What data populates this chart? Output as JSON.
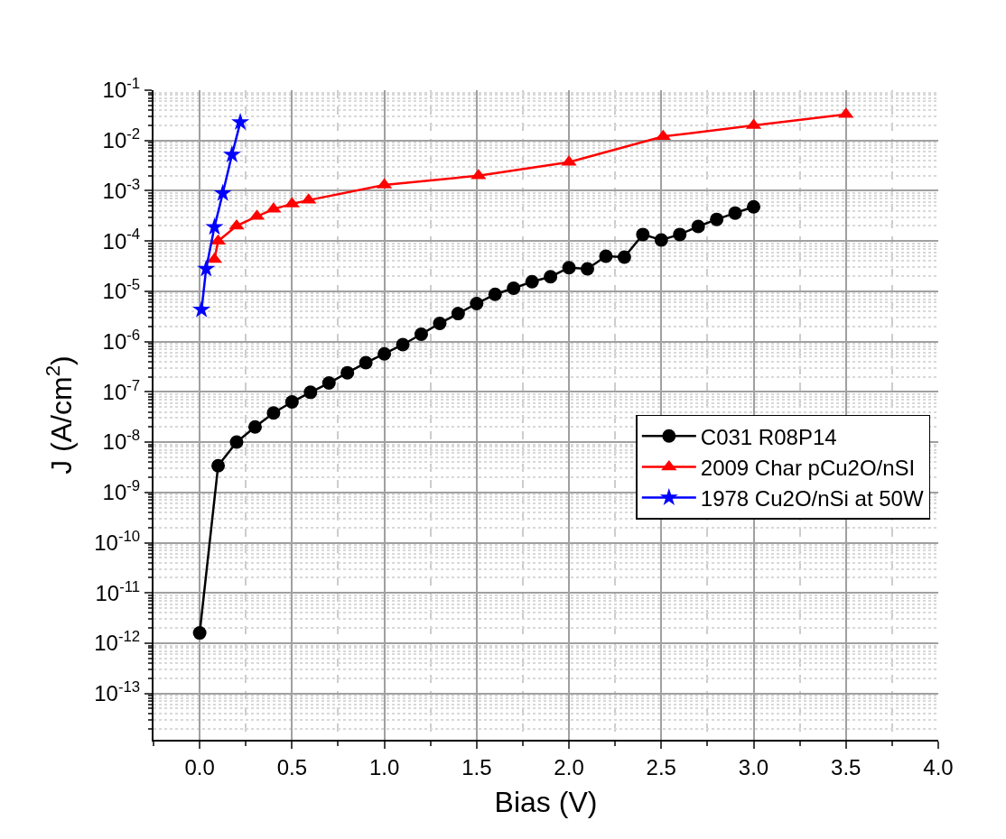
{
  "chart_data": {
    "type": "line",
    "xlabel": "Bias (V)",
    "ylabel": "J (A/cm$^{2}$)",
    "log": "y",
    "xlim": [
      -0.25,
      4.0
    ],
    "ylim": [
      1.2e-14,
      0.1
    ],
    "xticks": [
      {
        "value": 0,
        "label": "0.0"
      },
      {
        "value": 0.5,
        "label": "0.5"
      },
      {
        "value": 1,
        "label": "1.0"
      },
      {
        "value": 1.5,
        "label": "1.5"
      },
      {
        "value": 2,
        "label": "2.0"
      },
      {
        "value": 2.5,
        "label": "2.5"
      },
      {
        "value": 3,
        "label": "3.0"
      },
      {
        "value": 3.5,
        "label": "3.5"
      },
      {
        "value": 4,
        "label": "4.0"
      }
    ],
    "yticks": [
      {
        "value": 1e-13,
        "label": "10$^{-13}$"
      },
      {
        "value": 1e-12,
        "label": "10$^{-12}$"
      },
      {
        "value": 1e-11,
        "label": "10$^{-11}$"
      },
      {
        "value": 1e-10,
        "label": "10$^{-10}$"
      },
      {
        "value": 1e-09,
        "label": "10$^{-9}$"
      },
      {
        "value": 1e-08,
        "label": "10$^{-8}$"
      },
      {
        "value": 1e-07,
        "label": "10$^{-7}$"
      },
      {
        "value": 1e-06,
        "label": "10$^{-6}$"
      },
      {
        "value": 1e-05,
        "label": "10$^{-5}$"
      },
      {
        "value": 0.0001,
        "label": "10$^{-4}$"
      },
      {
        "value": 0.001,
        "label": "10$^{-3}$"
      },
      {
        "value": 0.01,
        "label": "10$^{-2}$"
      },
      {
        "value": 0.1,
        "label": "10$^{-1}$"
      }
    ],
    "grid": true,
    "legend": "right",
    "line_style": "solid",
    "series": [
      {
        "name": "C031 R08P14",
        "color": "#000000",
        "marker": "circle",
        "x": [
          0,
          0.1,
          0.2,
          0.3,
          0.4,
          0.5,
          0.6,
          0.7,
          0.8,
          0.9,
          1.0,
          1.1,
          1.2,
          1.3,
          1.4,
          1.5,
          1.6,
          1.7,
          1.8,
          1.9,
          2.0,
          2.1,
          2.2,
          2.3,
          2.4,
          2.5,
          2.6,
          2.7,
          2.8,
          2.9,
          3.0
        ],
        "values": [
          1.6e-12,
          3.4e-09,
          1e-08,
          2e-08,
          3.8e-08,
          6.3e-08,
          9.8e-08,
          1.5e-07,
          2.4e-07,
          3.8e-07,
          5.7e-07,
          8.7e-07,
          1.4e-06,
          2.3e-06,
          3.6e-06,
          5.7e-06,
          8.7e-06,
          1.15e-05,
          1.55e-05,
          1.95e-05,
          2.95e-05,
          2.8e-05,
          5e-05,
          4.8e-05,
          0.000135,
          0.000105,
          0.000135,
          0.000195,
          0.00027,
          0.00036,
          0.00048
        ]
      },
      {
        "name": "2009 Char pCu2O/nSI",
        "color": "#ff0000",
        "marker": "triangle",
        "x": [
          0.08,
          0.1,
          0.2,
          0.31,
          0.4,
          0.5,
          0.59,
          1.0,
          1.51,
          2.0,
          2.51,
          3.0,
          3.5
        ],
        "values": [
          4.3e-05,
          0.0001,
          0.0002,
          0.00031,
          0.00043,
          0.00055,
          0.00065,
          0.0013,
          0.002,
          0.0037,
          0.012,
          0.02,
          0.033
        ]
      },
      {
        "name": "1978 Cu2O/nSi at 50W",
        "color": "#0000ff",
        "marker": "star",
        "x": [
          0.01,
          0.035,
          0.08,
          0.125,
          0.175,
          0.22
        ],
        "values": [
          4.3e-06,
          2.8e-05,
          0.00019,
          0.00089,
          0.0052,
          0.023
        ]
      }
    ]
  }
}
